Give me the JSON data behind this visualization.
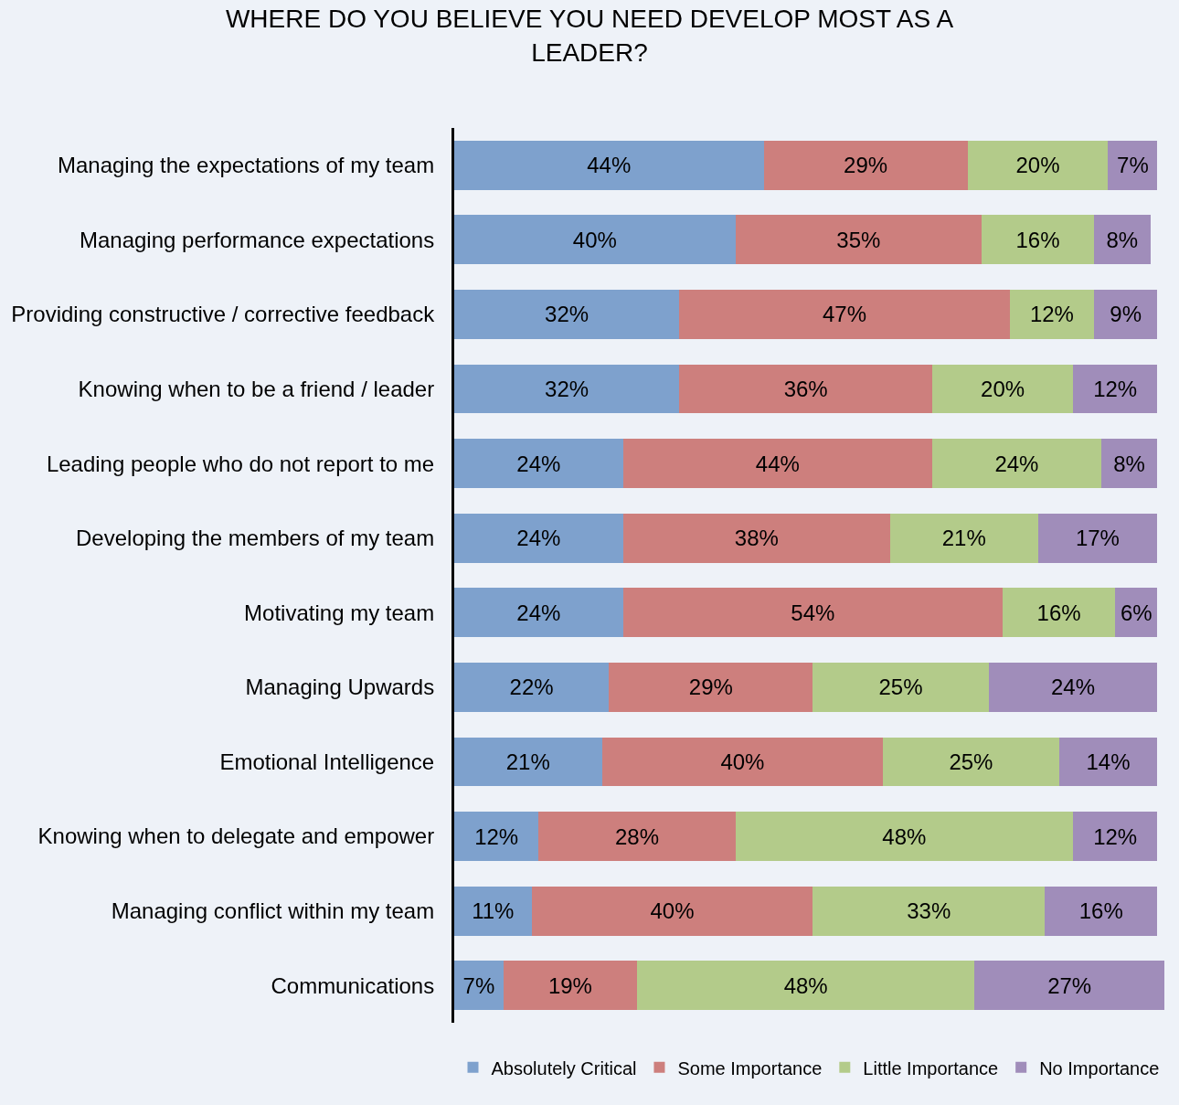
{
  "chart_data": {
    "type": "bar",
    "orientation": "horizontal",
    "stacked": true,
    "title": "WHERE DO YOU BELIEVE YOU NEED DEVELOP MOST AS A LEADER?",
    "categories": [
      "Managing the expectations of my team",
      "Managing performance expectations",
      "Providing constructive / corrective feedback",
      "Knowing when to be a friend / leader",
      "Leading people who do not report to me",
      "Developing the members of my team",
      "Motivating my team",
      "Managing Upwards",
      "Emotional Intelligence",
      "Knowing when to delegate and empower",
      "Managing conflict within my team",
      "Communications"
    ],
    "series": [
      {
        "name": "Absolutely Critical",
        "color": "#7ea1cd",
        "values": [
          44,
          40,
          32,
          32,
          24,
          24,
          24,
          22,
          21,
          12,
          11,
          7
        ],
        "value_labels": [
          "44%",
          "40%",
          "32%",
          "32%",
          "24%",
          "24%",
          "24%",
          "22%",
          "21%",
          "12%",
          "11%",
          "7%"
        ]
      },
      {
        "name": "Some Importance",
        "color": "#cd7f7d",
        "values": [
          29,
          35,
          47,
          36,
          44,
          38,
          54,
          29,
          40,
          28,
          40,
          19
        ],
        "value_labels": [
          "29%",
          "35%",
          "47%",
          "36%",
          "44%",
          "38%",
          "54%",
          "29%",
          "40%",
          "28%",
          "40%",
          "19%"
        ]
      },
      {
        "name": "Little Importance",
        "color": "#b3cb8a",
        "values": [
          20,
          16,
          12,
          20,
          24,
          21,
          16,
          25,
          25,
          48,
          33,
          48
        ],
        "value_labels": [
          "20%",
          "16%",
          "12%",
          "20%",
          "24%",
          "21%",
          "16%",
          "25%",
          "25%",
          "48%",
          "33%",
          "48%"
        ]
      },
      {
        "name": "No Importance",
        "color": "#a08dba",
        "values": [
          7,
          8,
          9,
          12,
          8,
          17,
          6,
          24,
          14,
          12,
          16,
          27
        ],
        "value_labels": [
          "7%",
          "8%",
          "9%",
          "12%",
          "8%",
          "17%",
          "6%",
          "24%",
          "14%",
          "12%",
          "16%",
          "27%"
        ]
      }
    ],
    "xlim": [
      0,
      101
    ],
    "tick_labels": "y",
    "grid": false,
    "legend": "bottom"
  }
}
